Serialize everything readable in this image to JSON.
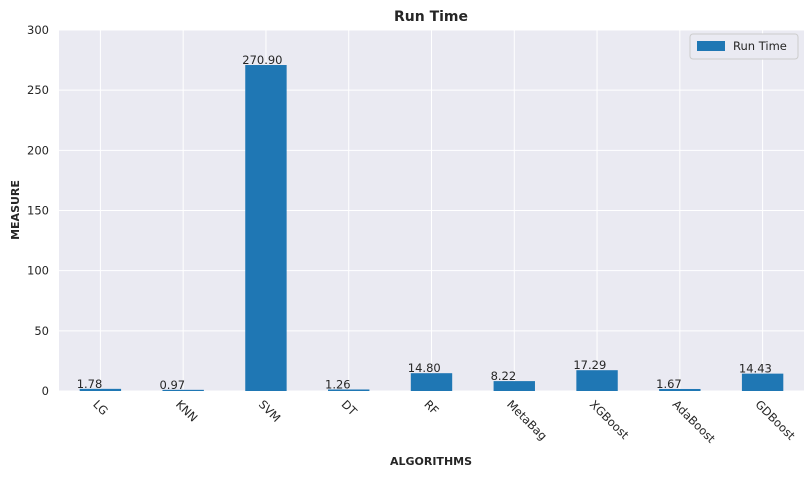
{
  "chart_data": {
    "type": "bar",
    "title": "Run Time",
    "xlabel": "ALGORITHMS",
    "ylabel": "MEASURE",
    "categories": [
      "LG",
      "KNN",
      "SVM",
      "DT",
      "RF",
      "MetaBag",
      "XGBoost",
      "AdaBoost",
      "GDBoost"
    ],
    "series": [
      {
        "name": "Run Time",
        "values": [
          1.78,
          0.97,
          270.9,
          1.26,
          14.8,
          8.22,
          17.29,
          1.67,
          14.43
        ],
        "labels": [
          "1.78",
          "0.97",
          "270.90",
          "1.26",
          "14.80",
          "8.22",
          "17.29",
          "1.67",
          "14.43"
        ],
        "color": "#1f77b4"
      }
    ],
    "ylim": [
      0,
      300
    ],
    "yticks": [
      "0",
      "50",
      "100",
      "150",
      "200",
      "250",
      "300"
    ],
    "ytick_values": [
      0,
      50,
      100,
      150,
      200,
      250,
      300
    ],
    "grid": true,
    "legend_position": "top-right",
    "background_color": "#eaeaf2",
    "grid_color": "#ffffff"
  }
}
